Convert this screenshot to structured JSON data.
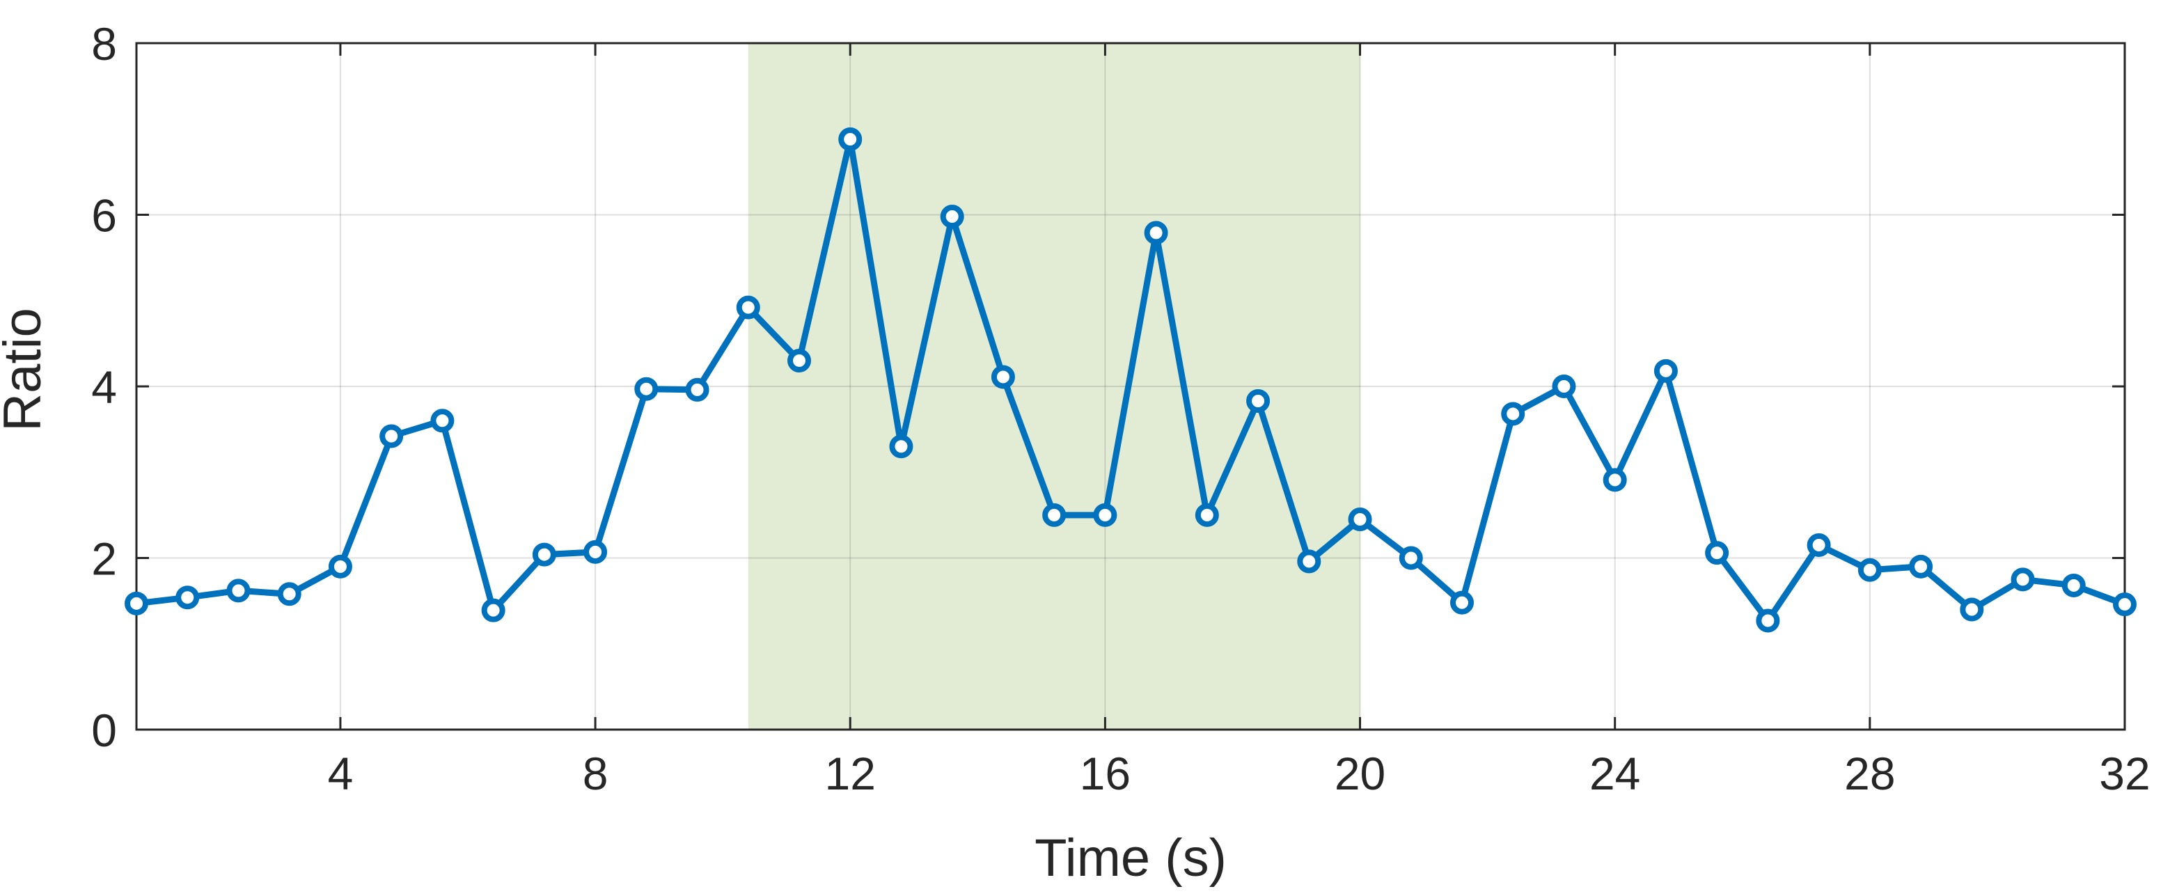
{
  "chart_data": {
    "type": "line",
    "title": "",
    "xlabel": "Time (s)",
    "ylabel": "Ratio",
    "xlim": [
      0.8,
      32
    ],
    "ylim": [
      0,
      8
    ],
    "x_ticks": [
      4,
      8,
      12,
      16,
      20,
      24,
      28,
      32
    ],
    "x_tick_labels": [
      "4",
      "8",
      "12",
      "16",
      "20",
      "24",
      "28",
      "32"
    ],
    "y_ticks": [
      0,
      2,
      4,
      6,
      8
    ],
    "y_tick_labels": [
      "0",
      "2",
      "4",
      "6",
      "8"
    ],
    "grid": true,
    "legend": "none",
    "shaded_region": {
      "x_start": 10.4,
      "x_end": 20,
      "color": "#e2ecd5"
    },
    "series": [
      {
        "color": "#0072bd",
        "marker": "circle",
        "x": [
          0.8,
          1.6,
          2.4,
          3.2,
          4.0,
          4.8,
          5.6,
          6.4,
          7.2,
          8.0,
          8.8,
          9.6,
          10.4,
          11.2,
          12.0,
          12.8,
          13.6,
          14.4,
          15.2,
          16.0,
          16.8,
          17.6,
          18.4,
          19.2,
          20.0,
          20.8,
          21.6,
          22.4,
          23.2,
          24.0,
          24.8,
          25.6,
          26.4,
          27.2,
          28.0,
          28.8,
          29.6,
          30.4,
          31.2,
          32.0
        ],
        "y": [
          1.47,
          1.54,
          1.62,
          1.58,
          1.9,
          3.42,
          3.6,
          1.39,
          2.04,
          2.07,
          3.97,
          3.96,
          4.92,
          4.3,
          6.88,
          3.3,
          5.98,
          4.11,
          2.5,
          2.5,
          5.79,
          2.5,
          3.83,
          1.96,
          2.45,
          2.0,
          1.48,
          3.68,
          4.0,
          2.91,
          4.18,
          2.06,
          1.27,
          2.15,
          1.86,
          1.9,
          1.4,
          1.75,
          1.68,
          1.46
        ]
      }
    ]
  }
}
